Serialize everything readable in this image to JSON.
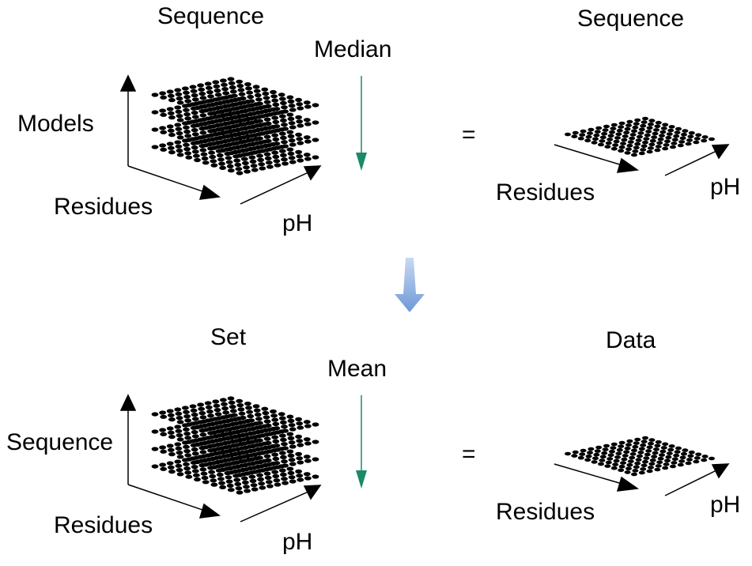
{
  "top": {
    "left_title": "Sequence",
    "operation": "Median",
    "equals": "=",
    "right_title": "Sequence",
    "stack_axis_label": "Models",
    "x_axis_label": "Residues",
    "z_axis_label": "pH",
    "result_x_label": "Residues",
    "result_z_label": "pH"
  },
  "bottom": {
    "left_title": "Set",
    "operation": "Mean",
    "equals": "=",
    "right_title": "Data",
    "stack_axis_label": "Sequence",
    "x_axis_label": "Residues",
    "z_axis_label": "pH",
    "result_x_label": "Residues",
    "result_z_label": "pH"
  },
  "colors": {
    "operation_arrow": "#1a8a6a",
    "flow_arrow": "#7ea4d8",
    "dots": "#000000"
  }
}
